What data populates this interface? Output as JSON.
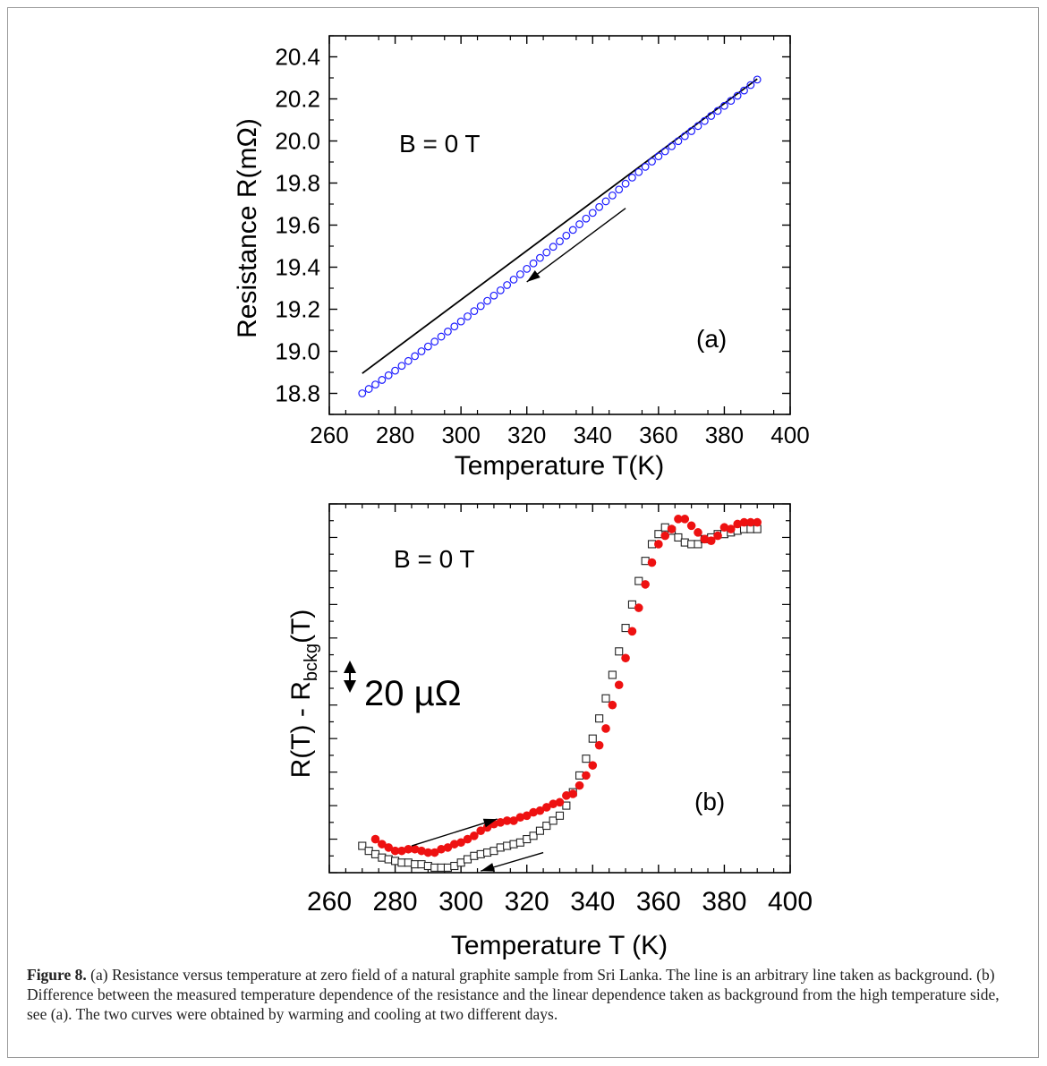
{
  "caption": {
    "label": "Figure 8.",
    "text": "(a) Resistance versus temperature at zero field of a natural graphite sample from Sri Lanka. The line is an arbitrary line taken as background. (b) Difference between the measured temperature dependence of the resistance and the linear dependence taken as background from the high temperature side, see (a). The two curves were obtained by warming and cooling at two different days."
  },
  "chart_data": [
    {
      "panel": "(a)",
      "type": "scatter",
      "annotation": "B = 0 T",
      "xlabel": "Temperature T(K)",
      "ylabel": "Resistance R(mΩ)",
      "xlim": [
        260,
        400
      ],
      "ylim": [
        18.7,
        20.5
      ],
      "xticks": [
        "260",
        "280",
        "300",
        "320",
        "340",
        "360",
        "380",
        "400"
      ],
      "yticks": [
        "18.8",
        "19.0",
        "19.2",
        "19.4",
        "19.6",
        "19.8",
        "20.0",
        "20.2",
        "20.4"
      ],
      "marker_color": "#1a1aff",
      "line_color": "#000000",
      "series": [
        {
          "marker": "open-circle",
          "x": [
            270,
            272,
            274,
            276,
            278,
            280,
            282,
            284,
            286,
            288,
            290,
            292,
            294,
            296,
            298,
            300,
            302,
            304,
            306,
            308,
            310,
            312,
            314,
            316,
            318,
            320,
            322,
            324,
            326,
            328,
            330,
            332,
            334,
            336,
            338,
            340,
            342,
            344,
            346,
            348,
            350,
            352,
            354,
            356,
            358,
            360,
            362,
            364,
            366,
            368,
            370,
            372,
            374,
            376,
            378,
            380,
            382,
            384,
            386,
            388,
            390
          ],
          "y": [
            18.8,
            18.821,
            18.842,
            18.864,
            18.886,
            18.908,
            18.931,
            18.954,
            18.977,
            19.0,
            19.023,
            19.046,
            19.07,
            19.094,
            19.118,
            19.142,
            19.166,
            19.191,
            19.215,
            19.24,
            19.265,
            19.29,
            19.315,
            19.341,
            19.366,
            19.392,
            19.418,
            19.444,
            19.47,
            19.497,
            19.523,
            19.55,
            19.577,
            19.604,
            19.631,
            19.658,
            19.686,
            19.713,
            19.741,
            19.769,
            19.797,
            19.826,
            19.852,
            19.877,
            19.902,
            19.927,
            19.951,
            19.975,
            19.999,
            20.023,
            20.047,
            20.071,
            20.095,
            20.119,
            20.143,
            20.167,
            20.191,
            20.215,
            20.24,
            20.266,
            20.292
          ]
        },
        {
          "marker": "line",
          "x": [
            270,
            390
          ],
          "y": [
            18.895,
            20.295
          ]
        }
      ],
      "arrow": {
        "from": [
          350,
          19.68
        ],
        "to": [
          320,
          19.33
        ]
      },
      "panel_label": "(a)"
    },
    {
      "panel": "(b)",
      "type": "scatter",
      "annotation": "B = 0 T",
      "scale_bar": "20 µΩ",
      "xlabel": "Temperature T (K)",
      "ylabel": "R(T) - R_bckg(T)",
      "xlim": [
        260,
        400
      ],
      "ylim": [
        0,
        220
      ],
      "xticks": [
        "260",
        "280",
        "300",
        "320",
        "340",
        "360",
        "380",
        "400"
      ],
      "filled_color": "#ee1111",
      "open_color": "#222222",
      "series": [
        {
          "marker": "filled-circle",
          "x": [
            274,
            276,
            278,
            280,
            282,
            284,
            286,
            288,
            290,
            292,
            294,
            296,
            298,
            300,
            302,
            304,
            306,
            308,
            310,
            312,
            314,
            316,
            318,
            320,
            322,
            324,
            326,
            328,
            330,
            332,
            334,
            336,
            338,
            340,
            342,
            344,
            346,
            348,
            350,
            352,
            354,
            356,
            358,
            360,
            362,
            364,
            366,
            368,
            370,
            372,
            374,
            376,
            378,
            380,
            382,
            384,
            386,
            388,
            390
          ],
          "y": [
            20,
            17,
            15,
            13,
            13,
            14,
            14,
            13,
            12,
            12,
            14,
            15,
            17,
            18,
            20,
            22,
            25,
            27,
            29,
            30,
            31,
            31,
            33,
            34,
            36,
            37,
            39,
            41,
            42,
            46,
            47,
            52,
            58,
            64,
            76,
            86,
            100,
            112,
            128,
            144,
            158,
            172,
            185,
            196,
            201,
            205,
            211,
            211,
            207,
            203,
            199,
            198,
            201,
            206,
            205,
            208,
            209,
            209,
            209
          ]
        },
        {
          "marker": "open-square",
          "x": [
            270,
            272,
            274,
            276,
            278,
            280,
            282,
            284,
            286,
            288,
            290,
            292,
            294,
            296,
            298,
            300,
            302,
            304,
            306,
            308,
            310,
            312,
            314,
            316,
            318,
            320,
            322,
            324,
            326,
            328,
            330,
            332,
            334,
            336,
            338,
            340,
            342,
            344,
            346,
            348,
            350,
            352,
            354,
            356,
            358,
            360,
            362,
            364,
            366,
            368,
            370,
            372,
            374,
            376,
            378,
            380,
            382,
            384,
            386,
            388,
            390
          ],
          "y": [
            16,
            13,
            11,
            9,
            8,
            7,
            6,
            6,
            5,
            5,
            4,
            3,
            3,
            3,
            4,
            6,
            8,
            10,
            11,
            12,
            13,
            15,
            16,
            17,
            18,
            20,
            22,
            25,
            28,
            31,
            34,
            40,
            48,
            58,
            68,
            80,
            92,
            104,
            118,
            132,
            146,
            160,
            174,
            186,
            196,
            202,
            206,
            204,
            200,
            197,
            196,
            196,
            199,
            200,
            202,
            202,
            203,
            204,
            205,
            205,
            205
          ]
        }
      ],
      "arrows": [
        {
          "from": [
            285,
            16
          ],
          "to": [
            311,
            32
          ]
        },
        {
          "from": [
            325,
            12
          ],
          "to": [
            306,
            1
          ]
        }
      ],
      "panel_label": "(b)"
    }
  ]
}
